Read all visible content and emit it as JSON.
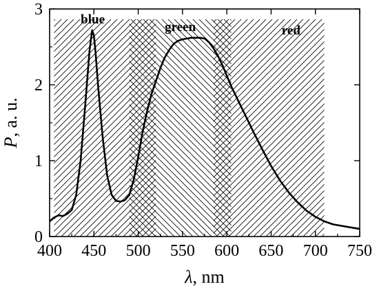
{
  "chart_data": {
    "type": "line",
    "xlabel_symbol": "λ",
    "xlabel_unit": ", nm",
    "ylabel_symbol": "P",
    "ylabel_unit": ", a. u.",
    "xlim": [
      400,
      750
    ],
    "ylim": [
      0,
      3
    ],
    "xticks": [
      400,
      450,
      500,
      550,
      600,
      650,
      700,
      750
    ],
    "yticks": [
      0,
      1,
      2,
      3
    ],
    "grid": false,
    "bands": [
      {
        "label": "blue",
        "range": [
          405,
          520
        ],
        "hatch": "forward"
      },
      {
        "label": "green",
        "range": [
          490,
          605
        ],
        "hatch": "backward"
      },
      {
        "label": "red",
        "range": [
          585,
          710
        ],
        "hatch": "forward"
      }
    ],
    "series": [
      {
        "x": [
          400,
          405,
          410,
          415,
          420,
          425,
          430,
          435,
          440,
          445,
          448,
          450,
          452,
          455,
          460,
          465,
          470,
          475,
          480,
          485,
          490,
          495,
          500,
          505,
          510,
          515,
          520,
          525,
          530,
          535,
          540,
          545,
          550,
          555,
          560,
          565,
          570,
          575,
          580,
          585,
          590,
          595,
          600,
          605,
          610,
          620,
          630,
          640,
          650,
          660,
          670,
          680,
          690,
          700,
          710,
          720,
          730,
          740,
          750
        ],
        "y": [
          0.2,
          0.25,
          0.28,
          0.27,
          0.3,
          0.35,
          0.55,
          1.0,
          1.7,
          2.45,
          2.72,
          2.65,
          2.4,
          1.95,
          1.3,
          0.8,
          0.55,
          0.47,
          0.46,
          0.48,
          0.55,
          0.75,
          1.05,
          1.38,
          1.65,
          1.88,
          2.05,
          2.22,
          2.36,
          2.46,
          2.54,
          2.58,
          2.6,
          2.61,
          2.62,
          2.62,
          2.62,
          2.61,
          2.56,
          2.48,
          2.38,
          2.26,
          2.12,
          1.98,
          1.86,
          1.62,
          1.38,
          1.15,
          0.93,
          0.74,
          0.58,
          0.45,
          0.34,
          0.26,
          0.2,
          0.16,
          0.14,
          0.12,
          0.1
        ]
      }
    ]
  }
}
